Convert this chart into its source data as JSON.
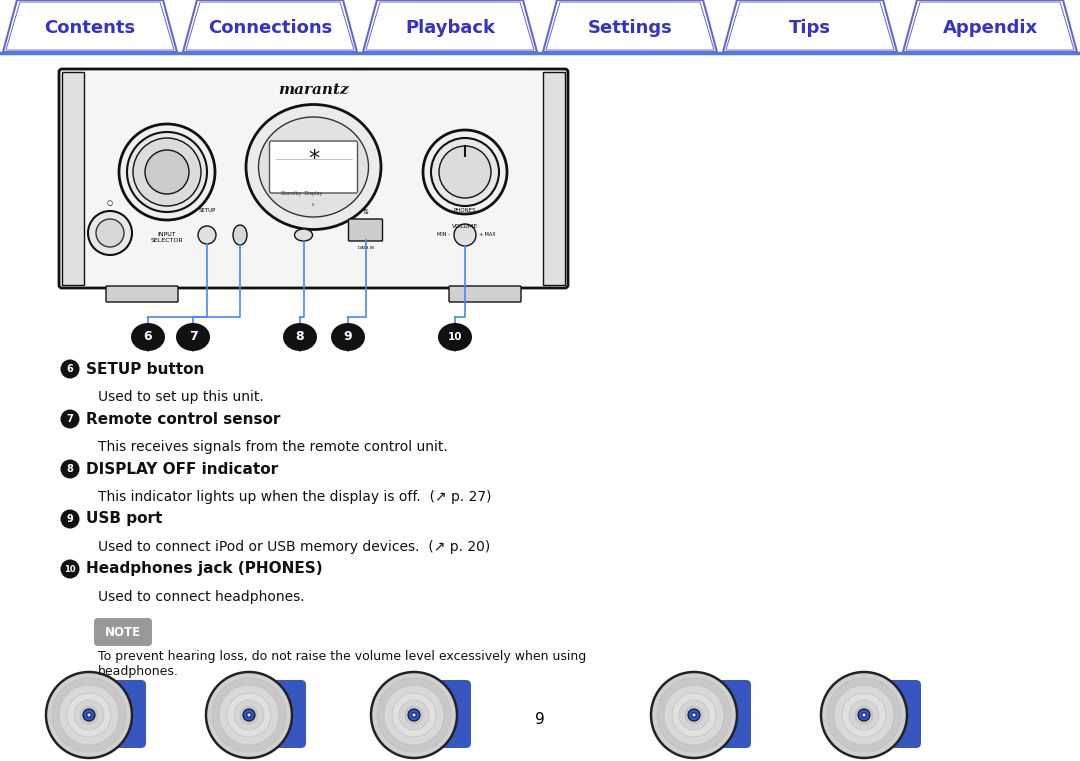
{
  "nav_items": [
    "Contents",
    "Connections",
    "Playback",
    "Settings",
    "Tips",
    "Appendix"
  ],
  "nav_text_color": "#3333cc",
  "nav_border_color": "#6666cc",
  "nav_line_color": "#5577ee",
  "page_bg": "#ffffff",
  "body_text_color": "#111111",
  "items": [
    {
      "num": "6",
      "title": "SETUP button",
      "desc": "Used to set up this unit."
    },
    {
      "num": "7",
      "title": "Remote control sensor",
      "desc": "This receives signals from the remote control unit."
    },
    {
      "num": "8",
      "title": "DISPLAY OFF indicator",
      "desc": "This indicator lights up when the display is off.  (↗ p. 27)"
    },
    {
      "num": "9",
      "title": "USB port",
      "desc": "Used to connect iPod or USB memory devices.  (↗ p. 20)"
    },
    {
      "num": "10",
      "title": "Headphones jack (PHONES)",
      "desc": "Used to connect headphones."
    }
  ],
  "note_text": "To prevent hearing loss, do not raise the volume level excessively when using\nheadphones.",
  "note_label": "NOTE",
  "note_bg": "#999999",
  "page_number": "9"
}
